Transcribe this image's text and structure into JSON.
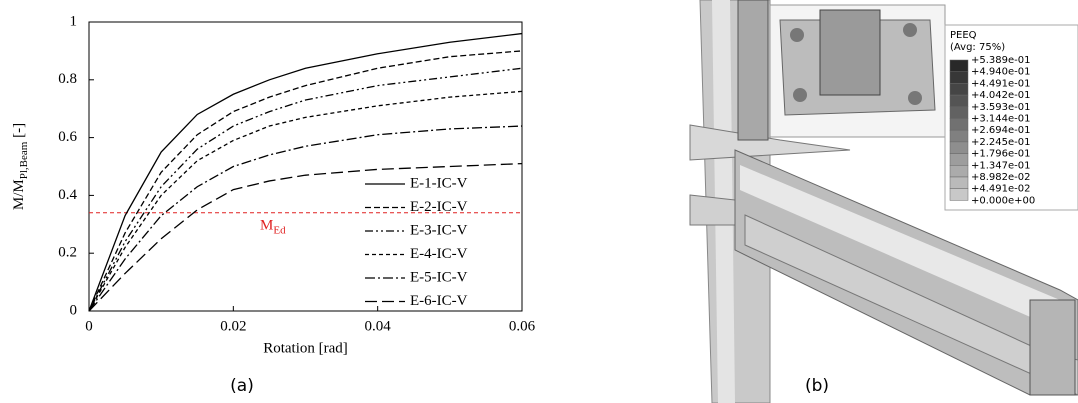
{
  "chart_data": {
    "type": "line",
    "xlabel": "Rotation [rad]",
    "ylabel": {
      "main": "M/M",
      "sub": "Pl,Beam",
      "suffix": " [-]"
    },
    "x": [
      0,
      0.005,
      0.01,
      0.015,
      0.02,
      0.025,
      0.03,
      0.04,
      0.05,
      0.06
    ],
    "series": [
      {
        "name": "E-1-IC-V",
        "color": "#000000",
        "dash": "solid",
        "values": [
          0,
          0.33,
          0.55,
          0.68,
          0.75,
          0.8,
          0.84,
          0.89,
          0.93,
          0.96
        ]
      },
      {
        "name": "E-2-IC-V",
        "color": "#000000",
        "dash": "dashed",
        "values": [
          0,
          0.27,
          0.48,
          0.61,
          0.69,
          0.74,
          0.78,
          0.84,
          0.88,
          0.9
        ]
      },
      {
        "name": "E-3-IC-V",
        "color": "#000000",
        "dashdotdot": true,
        "dash": "dash-dot-dot",
        "values": [
          0,
          0.24,
          0.43,
          0.56,
          0.64,
          0.69,
          0.73,
          0.78,
          0.81,
          0.84
        ]
      },
      {
        "name": "E-4-IC-V",
        "color": "#000000",
        "dash": "short-dash",
        "values": [
          0,
          0.22,
          0.4,
          0.52,
          0.59,
          0.64,
          0.67,
          0.71,
          0.74,
          0.76
        ]
      },
      {
        "name": "E-5-IC-V",
        "color": "#000000",
        "dash": "dash-dot",
        "values": [
          0,
          0.18,
          0.33,
          0.43,
          0.5,
          0.54,
          0.57,
          0.61,
          0.63,
          0.64
        ]
      },
      {
        "name": "E-6-IC-V",
        "color": "#000000",
        "dash": "long-dash",
        "values": [
          0,
          0.13,
          0.25,
          0.35,
          0.42,
          0.45,
          0.47,
          0.49,
          0.5,
          0.51
        ]
      }
    ],
    "xlim": [
      0,
      0.06
    ],
    "xticks": [
      0,
      0.02,
      0.04,
      0.06
    ],
    "ylim": [
      0,
      1
    ],
    "yticks": [
      0,
      0.2,
      0.4,
      0.6,
      0.8,
      1
    ],
    "threshold": {
      "value": 0.34,
      "color": "#e02020",
      "label": "M",
      "label_sub": "Ed"
    },
    "caption": "(a)"
  },
  "fe_image": {
    "legend_title": "PEEQ",
    "legend_subtitle": "(Avg: 75%)",
    "legend_values": [
      "+5.389e-01",
      "+4.940e-01",
      "+4.491e-01",
      "+4.042e-01",
      "+3.593e-01",
      "+3.144e-01",
      "+2.694e-01",
      "+2.245e-01",
      "+1.796e-01",
      "+1.347e-01",
      "+8.982e-02",
      "+4.491e-02",
      "+0.000e+00"
    ],
    "caption": "(b)"
  }
}
